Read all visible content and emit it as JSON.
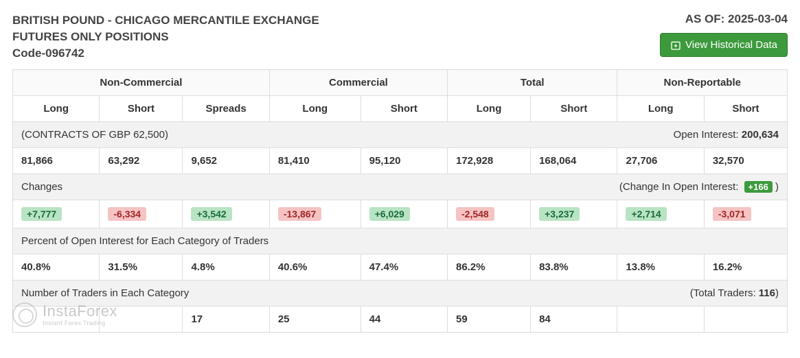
{
  "header": {
    "title_line1": "BRITISH POUND - CHICAGO MERCANTILE EXCHANGE",
    "title_line2": "FUTURES ONLY POSITIONS",
    "code": "Code-096742",
    "asof_label": "AS OF:",
    "asof_date": "2025-03-04",
    "historic_button": "View Historical Data"
  },
  "table": {
    "groups": [
      "Non-Commercial",
      "Commercial",
      "Total",
      "Non-Reportable"
    ],
    "subcols": [
      "Long",
      "Short",
      "Spreads",
      "Long",
      "Short",
      "Long",
      "Short",
      "Long",
      "Short"
    ],
    "section_contracts": {
      "label": "(CONTRACTS OF GBP 62,500)",
      "open_interest_label": "Open Interest:",
      "open_interest_value": "200,634"
    },
    "positions": [
      "81,866",
      "63,292",
      "9,652",
      "81,410",
      "95,120",
      "172,928",
      "168,064",
      "27,706",
      "32,570"
    ],
    "section_changes": {
      "label": "Changes",
      "change_oi_label": "(Change In Open Interest:",
      "change_oi_value": "+166",
      "change_oi_close": ")"
    },
    "changes": [
      {
        "v": "+7,777",
        "dir": "pos"
      },
      {
        "v": "-6,334",
        "dir": "neg"
      },
      {
        "v": "+3,542",
        "dir": "pos"
      },
      {
        "v": "-13,867",
        "dir": "neg"
      },
      {
        "v": "+6,029",
        "dir": "pos"
      },
      {
        "v": "-2,548",
        "dir": "neg"
      },
      {
        "v": "+3,237",
        "dir": "pos"
      },
      {
        "v": "+2,714",
        "dir": "pos"
      },
      {
        "v": "-3,071",
        "dir": "neg"
      }
    ],
    "section_percent": {
      "label": "Percent of Open Interest for Each Category of Traders"
    },
    "percents": [
      "40.8%",
      "31.5%",
      "4.8%",
      "40.6%",
      "47.4%",
      "86.2%",
      "83.8%",
      "13.8%",
      "16.2%"
    ],
    "section_traders": {
      "label": "Number of Traders in Each Category",
      "total_label": "(Total Traders:",
      "total_value": "116",
      "total_close": ")"
    },
    "traders": [
      "",
      "",
      "17",
      "25",
      "44",
      "59",
      "84",
      "",
      ""
    ]
  },
  "colors": {
    "pos_bg": "#b9e4c3",
    "neg_bg": "#f5c3c3",
    "accent_green": "#3c9a3c",
    "border": "#dddddd",
    "section_bg": "#f2f2f2"
  },
  "watermark": {
    "main": "InstaForex",
    "sub": "Instant Forex Trading"
  }
}
